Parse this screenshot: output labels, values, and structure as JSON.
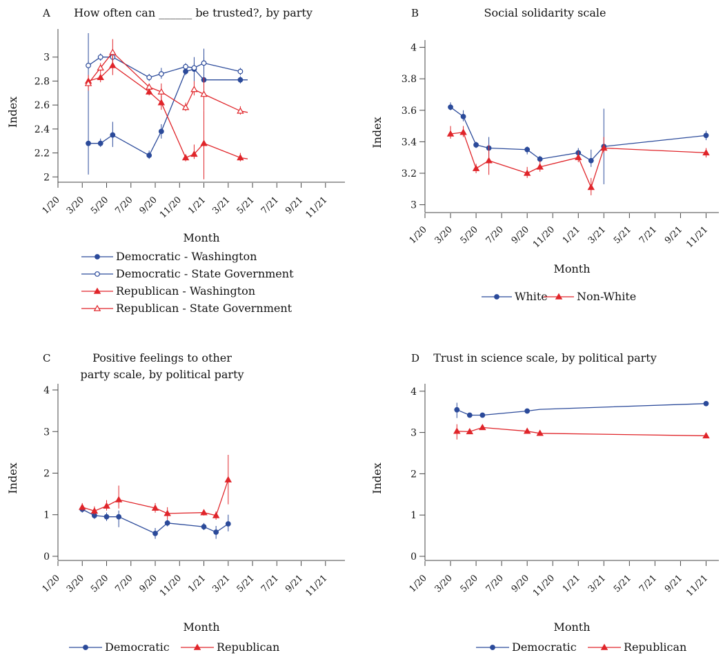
{
  "colors": {
    "blue": "#2b4a9a",
    "red": "#e0252a",
    "axis": "#444444"
  },
  "x_ticks": [
    "1/20",
    "3/20",
    "5/20",
    "7/20",
    "9/20",
    "11/20",
    "1/21",
    "3/21",
    "5/21",
    "7/21",
    "9/21",
    "11/21"
  ],
  "chart_data": [
    {
      "panel_letter": "A",
      "type": "line",
      "title": [
        "How often can ______ be trusted?, by party"
      ],
      "xlabel": "Month",
      "ylabel": "Index",
      "x_unit": "month index (1/20 = 0)",
      "ylim": [
        1.95,
        3.2
      ],
      "yticks": [
        2,
        2.2,
        2.4,
        2.6,
        2.8,
        3
      ],
      "legend_layout": "column",
      "grid": false,
      "series": [
        {
          "name": "Democratic - Washington",
          "color": "blue",
          "marker": "circle-filled",
          "points": [
            [
              2.5,
              2.28,
              2.02,
              3.2
            ],
            [
              3.5,
              2.28,
              2.25,
              2.32
            ],
            [
              4.5,
              2.35,
              2.25,
              2.46
            ],
            [
              7.5,
              2.18,
              2.15,
              2.22
            ],
            [
              8.5,
              2.38,
              2.32,
              2.44
            ],
            [
              10.5,
              2.88,
              2.85,
              2.92
            ],
            [
              11.2,
              2.9,
              2.8,
              3.0
            ],
            [
              12.0,
              2.81,
              2.71,
              3.07
            ],
            [
              15.0,
              2.81,
              2.78,
              2.84
            ]
          ],
          "line_to": 15.6
        },
        {
          "name": "Democratic - State Government",
          "color": "blue",
          "marker": "circle-open",
          "points": [
            [
              2.5,
              2.93,
              2.9,
              2.97
            ],
            [
              3.5,
              3.0,
              2.97,
              3.03
            ],
            [
              4.5,
              3.0,
              2.97,
              3.04
            ],
            [
              7.5,
              2.83,
              2.8,
              2.86
            ],
            [
              8.5,
              2.86,
              2.82,
              2.91
            ],
            [
              10.5,
              2.92,
              2.9,
              2.95
            ],
            [
              11.2,
              2.91,
              2.88,
              2.95
            ],
            [
              12.0,
              2.95,
              2.9,
              3.0
            ],
            [
              15.0,
              2.88,
              2.85,
              2.91
            ]
          ],
          "line_to": null
        },
        {
          "name": "Republican - Washington",
          "color": "red",
          "marker": "triangle-filled",
          "points": [
            [
              2.5,
              2.8,
              2.75,
              2.85
            ],
            [
              3.5,
              2.83,
              2.79,
              2.87
            ],
            [
              4.5,
              2.93,
              2.85,
              3.01
            ],
            [
              7.5,
              2.71,
              2.68,
              2.76
            ],
            [
              8.5,
              2.62,
              2.56,
              2.68
            ],
            [
              10.5,
              2.16,
              2.13,
              2.19
            ],
            [
              11.2,
              2.19,
              2.15,
              2.27
            ],
            [
              12.0,
              2.28,
              1.98,
              2.55
            ],
            [
              15.0,
              2.16,
              2.13,
              2.2
            ]
          ],
          "line_to": 15.6
        },
        {
          "name": "Republican - State Government",
          "color": "red",
          "marker": "triangle-open",
          "points": [
            [
              2.5,
              2.78,
              2.72,
              2.85
            ],
            [
              3.5,
              2.91,
              2.87,
              2.95
            ],
            [
              4.5,
              3.04,
              2.92,
              3.15
            ],
            [
              7.5,
              2.75,
              2.72,
              2.78
            ],
            [
              8.5,
              2.71,
              2.65,
              2.78
            ],
            [
              10.5,
              2.58,
              2.55,
              2.62
            ],
            [
              11.2,
              2.73,
              2.68,
              2.8
            ],
            [
              12.0,
              2.69,
              2.55,
              2.83
            ],
            [
              15.0,
              2.55,
              2.52,
              2.59
            ]
          ],
          "line_to": 15.6
        }
      ]
    },
    {
      "panel_letter": "B",
      "type": "line",
      "title": [
        "Social solidarity scale"
      ],
      "xlabel": "Month",
      "ylabel": "Index",
      "x_unit": "month index (1/20 = 0)",
      "ylim": [
        2.95,
        4.02
      ],
      "yticks": [
        3,
        3.2,
        3.4,
        3.6,
        3.8,
        4
      ],
      "legend_layout": "row",
      "grid": false,
      "series": [
        {
          "name": "White",
          "color": "blue",
          "marker": "circle-filled",
          "points": [
            [
              2.0,
              3.62,
              3.6,
              3.65
            ],
            [
              3.0,
              3.56,
              3.53,
              3.6
            ],
            [
              4.0,
              3.38,
              3.36,
              3.4
            ],
            [
              5.0,
              3.36,
              3.3,
              3.43
            ],
            [
              8.0,
              3.35,
              3.32,
              3.37
            ],
            [
              9.0,
              3.29,
              3.27,
              3.31
            ],
            [
              12.0,
              3.33,
              3.31,
              3.36
            ],
            [
              13.0,
              3.28,
              3.24,
              3.35
            ],
            [
              14.0,
              3.37,
              3.13,
              3.61
            ],
            [
              22.0,
              3.44,
              3.41,
              3.47
            ]
          ],
          "line_to": null
        },
        {
          "name": "Non-White",
          "color": "red",
          "marker": "triangle-filled",
          "points": [
            [
              2.0,
              3.45,
              3.42,
              3.5
            ],
            [
              3.0,
              3.46,
              3.43,
              3.5
            ],
            [
              4.0,
              3.23,
              3.2,
              3.26
            ],
            [
              5.0,
              3.28,
              3.19,
              3.38
            ],
            [
              8.0,
              3.2,
              3.17,
              3.24
            ],
            [
              9.0,
              3.24,
              3.21,
              3.28
            ],
            [
              12.0,
              3.3,
              3.27,
              3.34
            ],
            [
              13.0,
              3.11,
              3.06,
              3.17
            ],
            [
              14.0,
              3.36,
              3.33,
              3.43
            ],
            [
              22.0,
              3.33,
              3.3,
              3.36
            ]
          ],
          "line_to": null
        }
      ]
    },
    {
      "panel_letter": "C",
      "type": "line",
      "title": [
        "Positive feelings to other",
        "party scale, by political party"
      ],
      "xlabel": "Month",
      "ylabel": "Index",
      "x_unit": "month index (1/20 = 0)",
      "ylim": [
        -0.1,
        4.05
      ],
      "yticks": [
        0,
        1,
        2,
        3,
        4
      ],
      "legend_layout": "row",
      "grid": false,
      "series": [
        {
          "name": "Democratic",
          "color": "blue",
          "marker": "circle-filled",
          "points": [
            [
              2.0,
              1.13,
              1.05,
              1.2
            ],
            [
              3.0,
              0.98,
              0.9,
              1.05
            ],
            [
              4.0,
              0.95,
              0.85,
              1.05
            ],
            [
              5.0,
              0.95,
              0.7,
              1.1
            ],
            [
              8.0,
              0.55,
              0.42,
              0.68
            ],
            [
              9.0,
              0.8,
              0.72,
              0.88
            ],
            [
              12.0,
              0.71,
              0.63,
              0.8
            ],
            [
              13.0,
              0.58,
              0.42,
              0.73
            ],
            [
              14.0,
              0.78,
              0.6,
              1.0
            ]
          ],
          "line_to": null
        },
        {
          "name": "Republican",
          "color": "red",
          "marker": "triangle-filled",
          "points": [
            [
              2.0,
              1.18,
              1.1,
              1.28
            ],
            [
              3.0,
              1.09,
              1.0,
              1.2
            ],
            [
              4.0,
              1.21,
              1.1,
              1.35
            ],
            [
              5.0,
              1.36,
              1.15,
              1.7
            ],
            [
              8.0,
              1.16,
              1.05,
              1.28
            ],
            [
              9.0,
              1.03,
              0.88,
              1.18
            ],
            [
              12.0,
              1.05,
              0.98,
              1.12
            ],
            [
              13.0,
              0.98,
              0.88,
              1.08
            ],
            [
              14.0,
              1.84,
              1.25,
              2.44
            ]
          ],
          "line_to": null
        }
      ]
    },
    {
      "panel_letter": "D",
      "type": "line",
      "title": [
        "Trust in science scale, by political party"
      ],
      "xlabel": "Month",
      "ylabel": "Index",
      "x_unit": "month index (1/20 = 0)",
      "ylim": [
        -0.1,
        4.08
      ],
      "yticks": [
        0,
        1,
        2,
        3,
        4
      ],
      "legend_layout": "row",
      "grid": false,
      "series": [
        {
          "name": "Democratic",
          "color": "blue",
          "marker": "circle-filled",
          "points": [
            [
              2.5,
              3.55,
              3.35,
              3.72
            ],
            [
              3.5,
              3.42,
              3.38,
              3.46
            ],
            [
              4.5,
              3.42,
              3.38,
              3.46
            ],
            [
              8.0,
              3.52,
              3.48,
              3.56
            ],
            [
              22.0,
              3.7,
              3.67,
              3.73
            ]
          ],
          "line_to": null,
          "extra_line_points": [
            [
              9.0,
              3.56
            ]
          ]
        },
        {
          "name": "Republican",
          "color": "red",
          "marker": "triangle-filled",
          "points": [
            [
              2.5,
              3.03,
              2.83,
              3.2
            ],
            [
              3.5,
              3.02,
              2.98,
              3.06
            ],
            [
              4.5,
              3.12,
              3.06,
              3.18
            ],
            [
              8.0,
              3.03,
              2.98,
              3.08
            ],
            [
              9.0,
              2.98,
              2.94,
              3.02
            ],
            [
              22.0,
              2.92,
              2.89,
              2.95
            ]
          ],
          "line_to": null
        }
      ]
    }
  ]
}
